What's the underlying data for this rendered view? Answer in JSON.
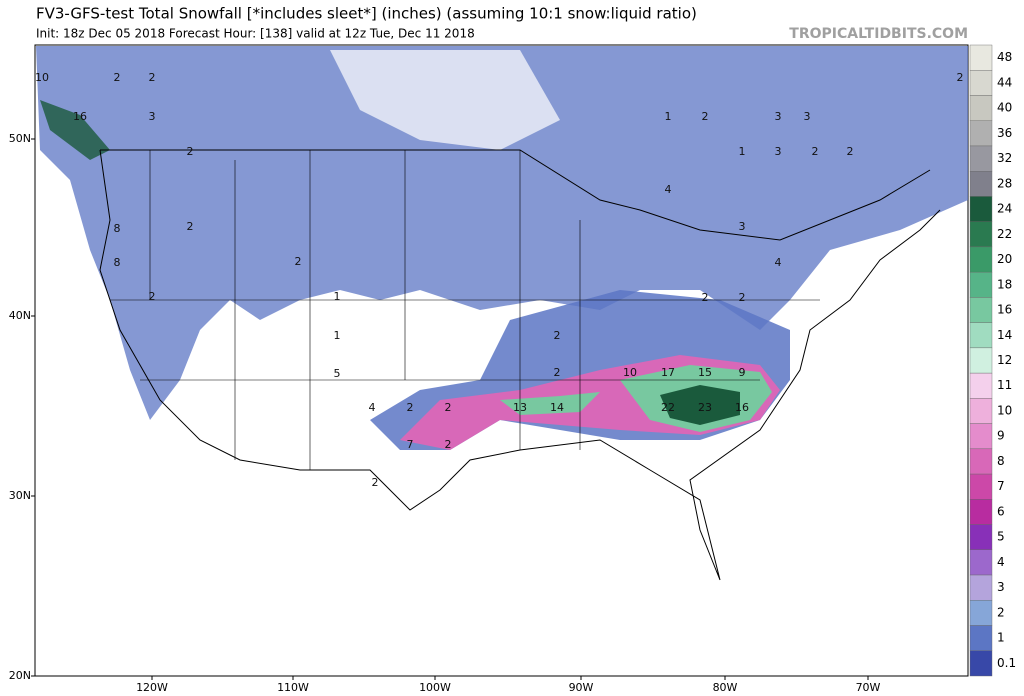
{
  "header": {
    "title": "FV3-GFS-test Total Snowfall [*includes sleet*] (inches) (assuming 10:1 snow:liquid ratio)",
    "subtitle": "Init: 18z Dec 05 2018   Forecast Hour: [138]   valid at 12z Tue, Dec 11 2018",
    "source": "TROPICALTIDBITS.COM"
  },
  "axes": {
    "lat_labels": [
      "50N",
      "40N",
      "30N",
      "20N"
    ],
    "lon_labels": [
      "120W",
      "110W",
      "100W",
      "90W",
      "80W",
      "70W"
    ]
  },
  "colorbar": {
    "labels": [
      "48",
      "44",
      "40",
      "36",
      "32",
      "28",
      "24",
      "22",
      "20",
      "18",
      "16",
      "14",
      "12",
      "11",
      "10",
      "9",
      "8",
      "7",
      "6",
      "5",
      "4",
      "3",
      "2",
      "1",
      "0.1"
    ],
    "colors": [
      "#e8e8e0",
      "#d8d8d0",
      "#c8c8c0",
      "#b0b0b0",
      "#9898a0",
      "#80808c",
      "#1a5a3c",
      "#2a7a50",
      "#3a9a68",
      "#56b488",
      "#78c8a0",
      "#a0dcc0",
      "#d0f0e0",
      "#f4d0ec",
      "#eeb0dc",
      "#e48ccc",
      "#d868b8",
      "#cc48a8",
      "#b82ca0",
      "#8830b8",
      "#9c68cc",
      "#b4a4dc",
      "#86a6d8",
      "#5c76c4",
      "#3848a8"
    ]
  },
  "map_labels": [
    "10",
    "2",
    "2",
    "3",
    "16",
    "2",
    "8",
    "8",
    "2",
    "2",
    "2",
    "1",
    "1",
    "5",
    "4",
    "2",
    "2",
    "7",
    "2",
    "13",
    "14",
    "2",
    "2",
    "10",
    "17",
    "15",
    "9",
    "22",
    "23",
    "16",
    "2",
    "2",
    "4",
    "1",
    "2",
    "3",
    "1",
    "3",
    "2",
    "2",
    "3",
    "4",
    "2",
    "3",
    "2"
  ]
}
